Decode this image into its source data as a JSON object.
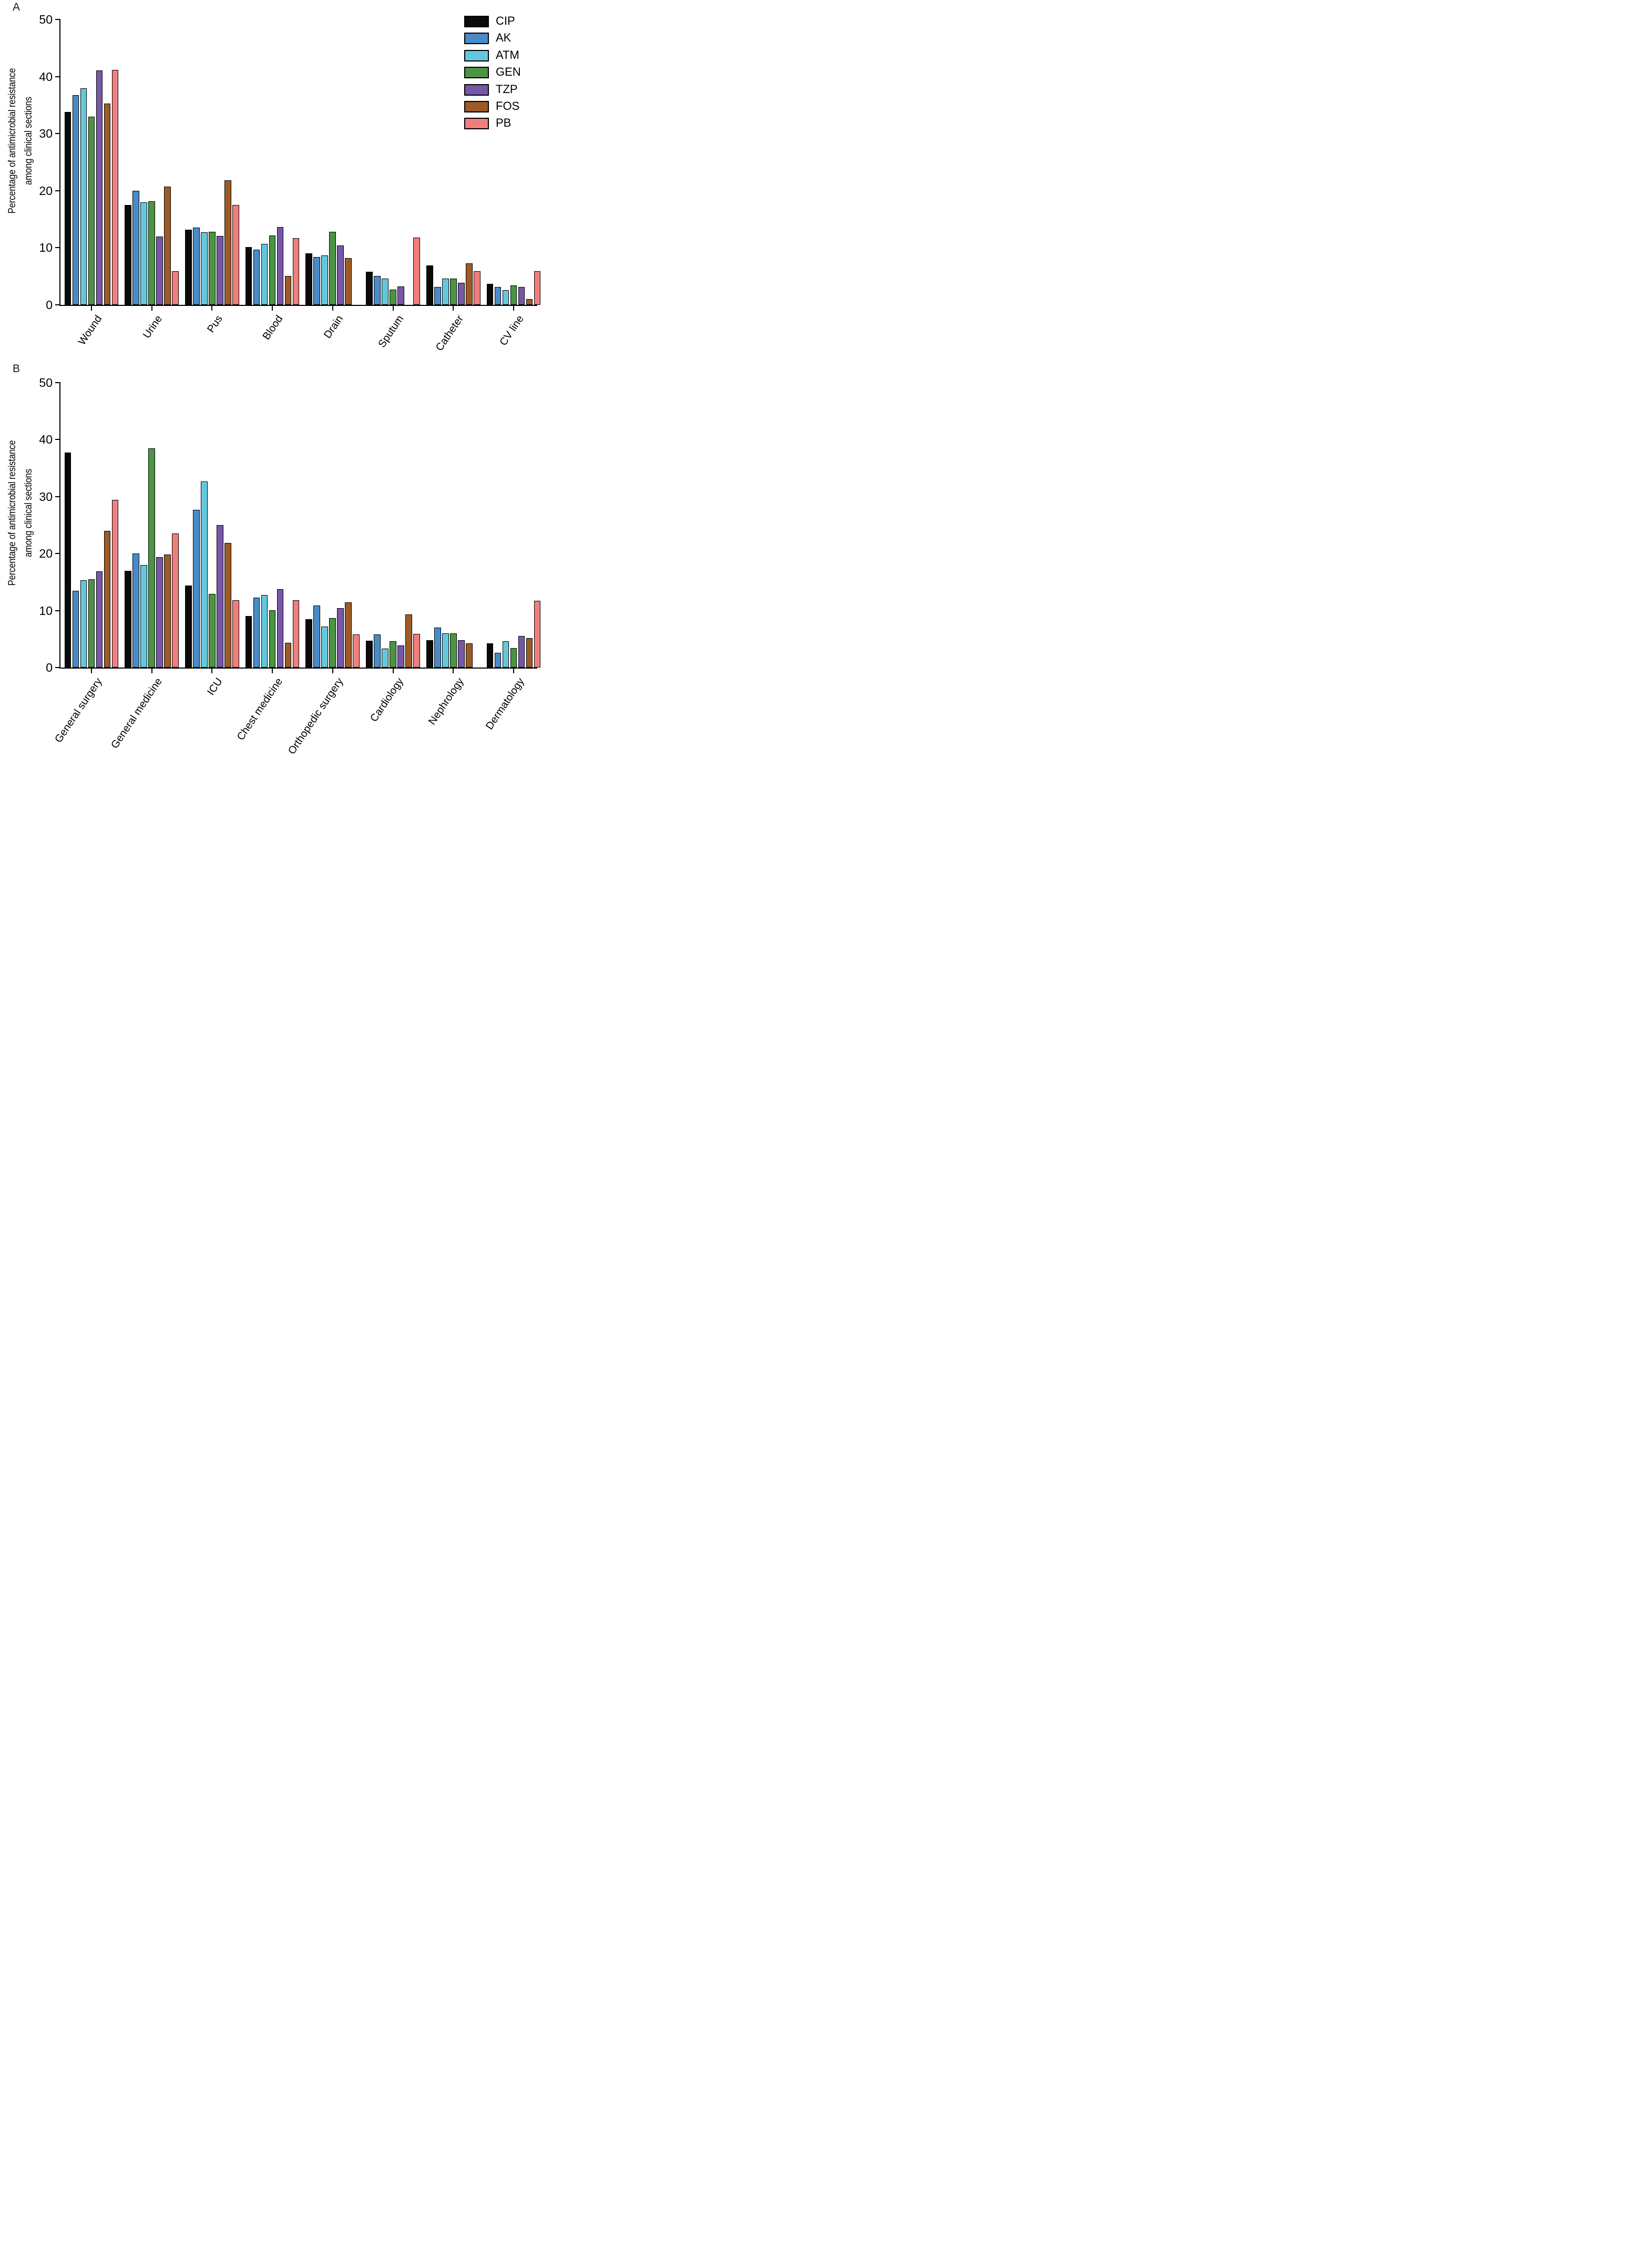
{
  "figure": {
    "panel_a_letter": "A",
    "panel_b_letter": "B",
    "y_axis_label_line1": "Percentage of antimicrobial resistance",
    "y_axis_label_line2": "among clinical sections"
  },
  "legend": {
    "position": "top-right",
    "items": [
      "CIP",
      "AK",
      "ATM",
      "GEN",
      "TZP",
      "FOS",
      "PB"
    ]
  },
  "colors": {
    "CIP": "#0a0a0a",
    "AK": "#488bc8",
    "ATM": "#63c8dc",
    "GEN": "#4d9344",
    "TZP": "#7757a8",
    "FOS": "#9c5a27",
    "PB": "#f07e7c"
  },
  "chart_data": [
    {
      "panel": "A",
      "type": "bar",
      "title": "",
      "xlabel": "",
      "ylabel": "Percentage of antimicrobial resistance among clinical sections",
      "ylim": [
        0,
        50
      ],
      "yticks": [
        0,
        10,
        20,
        30,
        40,
        50
      ],
      "grid": false,
      "legend_position": "top-right",
      "categories": [
        "Wound",
        "Urine",
        "Pus",
        "Blood",
        "Drain",
        "Sputum",
        "Catheter",
        "CV line"
      ],
      "series": [
        {
          "name": "CIP",
          "color": "#0a0a0a",
          "values": [
            33.8,
            17.5,
            13.2,
            10.1,
            9.0,
            5.8,
            6.9,
            3.7
          ]
        },
        {
          "name": "AK",
          "color": "#488bc8",
          "values": [
            36.7,
            20.0,
            13.5,
            9.7,
            8.4,
            5.1,
            3.1,
            3.1
          ]
        },
        {
          "name": "ATM",
          "color": "#63c8dc",
          "values": [
            37.9,
            18.0,
            12.7,
            10.7,
            8.7,
            4.6,
            4.6,
            2.6
          ]
        },
        {
          "name": "GEN",
          "color": "#4d9344",
          "values": [
            33.0,
            18.1,
            12.8,
            12.2,
            12.8,
            2.7,
            4.6,
            3.4
          ]
        },
        {
          "name": "TZP",
          "color": "#7757a8",
          "values": [
            41.1,
            12.0,
            12.1,
            13.6,
            10.4,
            3.2,
            3.9,
            3.1
          ]
        },
        {
          "name": "FOS",
          "color": "#9c5a27",
          "values": [
            35.3,
            20.7,
            21.8,
            5.1,
            8.2,
            0,
            7.3,
            1.0
          ]
        },
        {
          "name": "PB",
          "color": "#f07e7c",
          "values": [
            41.2,
            5.9,
            17.5,
            11.7,
            0,
            11.8,
            5.9,
            5.9
          ]
        }
      ]
    },
    {
      "panel": "B",
      "type": "bar",
      "title": "",
      "xlabel": "",
      "ylabel": "Percentage of antimicrobial resistance among clinical sections",
      "ylim": [
        0,
        50
      ],
      "yticks": [
        0,
        10,
        20,
        30,
        40,
        50
      ],
      "grid": false,
      "legend_position": "none",
      "categories": [
        "General surgery",
        "General medicine",
        "ICU",
        "Chest medicine",
        "Orthopedic surgery",
        "Cardiology",
        "Nephrology",
        "Dermatology"
      ],
      "series": [
        {
          "name": "CIP",
          "color": "#0a0a0a",
          "values": [
            37.7,
            17.0,
            14.4,
            9.0,
            8.5,
            4.7,
            4.8,
            4.2
          ]
        },
        {
          "name": "AK",
          "color": "#488bc8",
          "values": [
            13.5,
            20.0,
            27.7,
            12.3,
            10.9,
            5.8,
            7.0,
            2.6
          ]
        },
        {
          "name": "ATM",
          "color": "#63c8dc",
          "values": [
            15.3,
            18.0,
            32.7,
            12.7,
            7.2,
            3.3,
            6.0,
            4.6
          ]
        },
        {
          "name": "GEN",
          "color": "#4d9344",
          "values": [
            15.5,
            38.5,
            12.9,
            10.1,
            8.7,
            4.6,
            6.0,
            3.4
          ]
        },
        {
          "name": "TZP",
          "color": "#7757a8",
          "values": [
            16.9,
            19.4,
            25.0,
            13.7,
            10.4,
            3.9,
            4.8,
            5.5
          ]
        },
        {
          "name": "FOS",
          "color": "#9c5a27",
          "values": [
            24.0,
            19.8,
            21.9,
            4.3,
            11.4,
            9.3,
            4.2,
            5.2
          ]
        },
        {
          "name": "PB",
          "color": "#f07e7c",
          "values": [
            29.4,
            23.5,
            11.8,
            11.8,
            5.8,
            5.9,
            0,
            11.7
          ]
        }
      ]
    }
  ]
}
